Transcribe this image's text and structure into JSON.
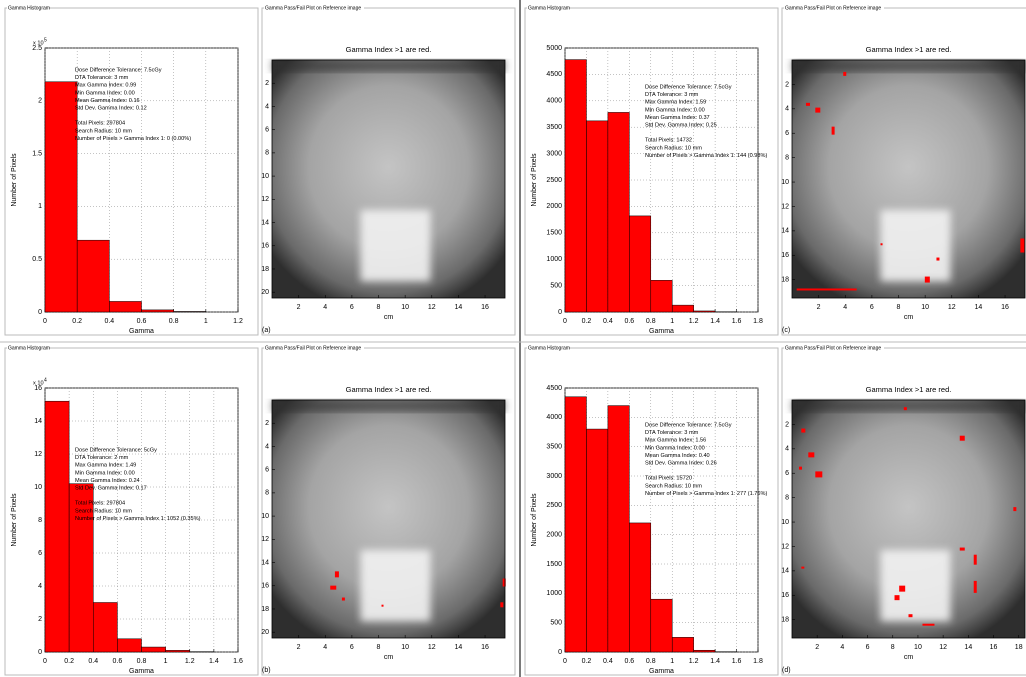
{
  "chart_data": [
    {
      "type": "histogram",
      "panel_title": "Gamma Histogram",
      "xlabel": "Gamma",
      "ylabel": "Number of Pixels",
      "y_exponent_base": "x 10",
      "y_exponent": "5",
      "bins": [
        0,
        0.2,
        0.4,
        0.6,
        0.8,
        1.0,
        1.2
      ],
      "values": [
        2.18,
        0.68,
        0.1,
        0.02,
        0.005,
        0
      ],
      "color": "#ff0000",
      "grid": true,
      "xlim": [
        0,
        1.2
      ],
      "xticks": [
        0,
        0.2,
        0.4,
        0.6,
        0.8,
        1,
        1.2
      ],
      "ylim": [
        0,
        2.5
      ],
      "yticks": [
        0,
        0.5,
        1,
        1.5,
        2,
        2.5
      ],
      "stats": [
        "Dose Difference Tolerance: 7.5cGy",
        "DTA Tolerance: 3 mm",
        "Max Gamma Index: 0.99",
        "Min Gamma Index: 0.00",
        "Mean Gamma Index: 0.16",
        "Std Dev. Gamma Index: 0.12"
      ],
      "summary": [
        "Total Pixels: 297804",
        "Search Radius: 10 mm",
        "Number of Pixels > Gamma Index 1: 0 (0.00%)"
      ]
    },
    {
      "type": "image",
      "panel_title": "Gamma Pass/Fail Plot on Reference image",
      "title": "Gamma Index >1 are red.",
      "xlabel": "cm",
      "label": "(a)",
      "xlim": [
        0,
        17.5
      ],
      "xticks": [
        2,
        4,
        6,
        8,
        10,
        12,
        14,
        16
      ],
      "ylim": [
        0,
        20.5
      ],
      "yticks": [
        2,
        4,
        6,
        8,
        10,
        12,
        14,
        16,
        18,
        20
      ]
    },
    {
      "type": "histogram",
      "panel_title": "Gamma Histogram",
      "xlabel": "Gamma",
      "ylabel": "Number of Pixels",
      "y_exponent_base": "x 10",
      "y_exponent": "4",
      "bins": [
        0,
        0.2,
        0.4,
        0.6,
        0.8,
        1.0,
        1.2,
        1.4,
        1.6
      ],
      "values": [
        15.2,
        10.2,
        3.0,
        0.8,
        0.3,
        0.1,
        0.02,
        0
      ],
      "color": "#ff0000",
      "grid": true,
      "xlim": [
        0,
        1.6
      ],
      "xticks": [
        0,
        0.2,
        0.4,
        0.6,
        0.8,
        1,
        1.2,
        1.4,
        1.6
      ],
      "ylim": [
        0,
        16
      ],
      "yticks": [
        0,
        2,
        4,
        6,
        8,
        10,
        12,
        14,
        16
      ],
      "stats": [
        "Dose Difference Tolerance: 5cGy",
        "DTA Tolerance: 2 mm",
        "Max Gamma Index: 1.49",
        "Min Gamma Index: 0.00",
        "Mean Gamma Index: 0.24",
        "Std Dev. Gamma Index: 0.17"
      ],
      "summary": [
        "Total Pixels: 297804",
        "Search Radius: 10 mm",
        "Number of Pixels > Gamma Index 1: 1052 (0.35%)"
      ]
    },
    {
      "type": "image",
      "panel_title": "Gamma Pass/Fail Plot on Reference image",
      "title": "Gamma Index >1 are red.",
      "xlabel": "cm",
      "label": "(b)",
      "xlim": [
        0,
        17.5
      ],
      "xticks": [
        2,
        4,
        6,
        8,
        10,
        12,
        14,
        16
      ],
      "ylim": [
        0,
        20.5
      ],
      "yticks": [
        2,
        4,
        6,
        8,
        10,
        12,
        14,
        16,
        18,
        20
      ]
    },
    {
      "type": "histogram",
      "panel_title": "Gamma Histogram",
      "xlabel": "Gamma",
      "ylabel": "Number of Pixels",
      "bins": [
        0,
        0.2,
        0.4,
        0.6,
        0.8,
        1.0,
        1.2,
        1.4,
        1.6,
        1.8
      ],
      "values": [
        4780,
        3620,
        3780,
        1820,
        600,
        130,
        20,
        5,
        0
      ],
      "color": "#ff0000",
      "grid": true,
      "xlim": [
        0,
        1.8
      ],
      "xticks": [
        0,
        0.2,
        0.4,
        0.6,
        0.8,
        1,
        1.2,
        1.4,
        1.6,
        1.8
      ],
      "ylim": [
        0,
        5000
      ],
      "yticks": [
        0,
        500,
        1000,
        1500,
        2000,
        2500,
        3000,
        3500,
        4000,
        4500,
        5000
      ],
      "stats": [
        "Dose Difference Tolerance: 7.5cGy",
        "DTA Tolerance: 3 mm",
        "Max Gamma Index: 1.59",
        "Min Gamma Index: 0.00",
        "Mean Gamma Index: 0.37",
        "Std Dev. Gamma Index: 0.25"
      ],
      "summary": [
        "Total Pixels: 14732",
        "Search Radius: 10 mm",
        "Number of Pixels > Gamma Index 1: 144 (0.98%)"
      ]
    },
    {
      "type": "image",
      "panel_title": "Gamma Pass/Fail Plot on Reference image",
      "title": "Gamma Index >1 are red.",
      "xlabel": "cm",
      "label": "(c)",
      "xlim": [
        0,
        17.5
      ],
      "xticks": [
        2,
        4,
        6,
        8,
        10,
        12,
        14,
        16
      ],
      "ylim": [
        0,
        19.5
      ],
      "yticks": [
        2,
        4,
        6,
        8,
        10,
        12,
        14,
        16,
        18
      ]
    },
    {
      "type": "histogram",
      "panel_title": "Gamma Histogram",
      "xlabel": "Gamma",
      "ylabel": "Number of Pixels",
      "bins": [
        0,
        0.2,
        0.4,
        0.6,
        0.8,
        1.0,
        1.2,
        1.4,
        1.6,
        1.8
      ],
      "values": [
        4350,
        3800,
        4200,
        2200,
        900,
        250,
        30,
        5,
        0
      ],
      "color": "#ff0000",
      "grid": true,
      "xlim": [
        0,
        1.8
      ],
      "xticks": [
        0,
        0.2,
        0.4,
        0.6,
        0.8,
        1,
        1.2,
        1.4,
        1.6,
        1.8
      ],
      "ylim": [
        0,
        4500
      ],
      "yticks": [
        0,
        500,
        1000,
        1500,
        2000,
        2500,
        3000,
        3500,
        4000,
        4500
      ],
      "stats": [
        "Dose Difference Tolerance: 7.5cGy",
        "DTA Tolerance: 3 mm",
        "Max Gamma Index: 1.56",
        "Min Gamma Index: 0.00",
        "Mean Gamma Index: 0.40",
        "Std Dev. Gamma Index: 0.26"
      ],
      "summary": [
        "Total Pixels: 15720",
        "Search Radius: 10 mm",
        "Number of Pixels > Gamma Index 1: 277 (1.76%)"
      ]
    },
    {
      "type": "image",
      "panel_title": "Gamma Pass/Fail Plot on Reference image",
      "title": "Gamma Index >1 are red.",
      "xlabel": "cm",
      "label": "(d)",
      "xlim": [
        0,
        18.5
      ],
      "xticks": [
        2,
        4,
        6,
        8,
        10,
        12,
        14,
        16,
        18
      ],
      "ylim": [
        0,
        19.5
      ],
      "yticks": [
        2,
        4,
        6,
        8,
        10,
        12,
        14,
        16,
        18
      ]
    }
  ]
}
